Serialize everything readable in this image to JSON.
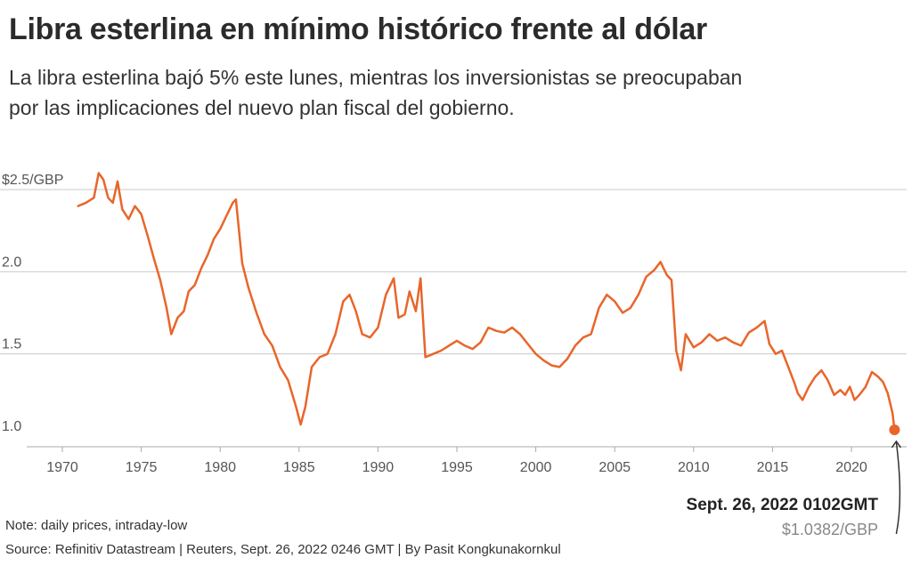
{
  "header": {
    "title": "Libra esterlina en mínimo histórico frente al dólar",
    "subtitle_line1": "La libra esterlina bajó 5% este lunes, mientras los inversionistas se preocupaban",
    "subtitle_line2": "por las implicaciones del nuevo plan fiscal del gobierno."
  },
  "footer": {
    "note": "Note: daily prices, intraday-low",
    "source": "Source: Refinitiv Datastream | Reuters, Sept. 26, 2022 0246 GMT | By Pasit Kongkunakornkul"
  },
  "annotation": {
    "date": "Sept. 26, 2022 0102GMT",
    "value": "$1.0382/GBP"
  },
  "colors": {
    "line": "#e8662a",
    "grid": "#c8c8c8",
    "axis_text": "#555555"
  },
  "chart_data": {
    "type": "line",
    "title": "Libra esterlina en mínimo histórico frente al dólar",
    "xlabel": "",
    "ylabel": "",
    "xlim": [
      1970,
      2022.8
    ],
    "ylim": [
      1.0,
      2.5
    ],
    "x_ticks": [
      1970,
      1975,
      1980,
      1985,
      1990,
      1995,
      2000,
      2005,
      2010,
      2015,
      2020
    ],
    "x_tick_labels": [
      "1970",
      "1975",
      "1980",
      "1985",
      "1990",
      "1995",
      "2000",
      "2005",
      "2010",
      "2015",
      "2020"
    ],
    "y_ticks": [
      1.0,
      1.5,
      2.0,
      2.5
    ],
    "y_tick_labels": [
      "1.0",
      "1.5",
      "2.0",
      "$2.5/GBP"
    ],
    "grid": true,
    "series": [
      {
        "x": [
          1971.0,
          1971.5,
          1972.0,
          1972.3,
          1972.6,
          1972.9,
          1973.2,
          1973.5,
          1973.8,
          1974.2,
          1974.6,
          1975.0,
          1975.4,
          1975.8,
          1976.2,
          1976.6,
          1976.9,
          1977.3,
          1977.7,
          1978.0,
          1978.4,
          1978.8,
          1979.2,
          1979.6,
          1980.0,
          1980.4,
          1980.8,
          1981.0,
          1981.4,
          1981.8,
          1982.3,
          1982.8,
          1983.3,
          1983.8,
          1984.3,
          1984.8,
          1985.1,
          1985.4,
          1985.8,
          1986.3,
          1986.8,
          1987.3,
          1987.8,
          1988.2,
          1988.6,
          1989.0,
          1989.5,
          1990.0,
          1990.5,
          1991.0,
          1991.3,
          1991.7,
          1992.0,
          1992.4,
          1992.7,
          1993.0,
          1993.5,
          1994.0,
          1994.5,
          1995.0,
          1995.5,
          1996.0,
          1996.5,
          1997.0,
          1997.5,
          1998.0,
          1998.5,
          1999.0,
          1999.5,
          2000.0,
          2000.5,
          2001.0,
          2001.5,
          2002.0,
          2002.5,
          2003.0,
          2003.5,
          2004.0,
          2004.5,
          2005.0,
          2005.5,
          2006.0,
          2006.5,
          2007.0,
          2007.5,
          2007.9,
          2008.3,
          2008.6,
          2008.9,
          2009.2,
          2009.5,
          2010.0,
          2010.5,
          2011.0,
          2011.5,
          2012.0,
          2012.5,
          2013.0,
          2013.5,
          2014.0,
          2014.5,
          2014.8,
          2015.2,
          2015.6,
          2016.0,
          2016.4,
          2016.6,
          2016.9,
          2017.3,
          2017.7,
          2018.1,
          2018.5,
          2018.9,
          2019.3,
          2019.6,
          2019.9,
          2020.2,
          2020.5,
          2020.9,
          2021.3,
          2021.7,
          2022.0,
          2022.3,
          2022.6,
          2022.73
        ],
        "y": [
          2.4,
          2.42,
          2.45,
          2.6,
          2.56,
          2.45,
          2.42,
          2.55,
          2.38,
          2.32,
          2.4,
          2.35,
          2.22,
          2.08,
          1.95,
          1.78,
          1.62,
          1.72,
          1.76,
          1.88,
          1.92,
          2.02,
          2.1,
          2.2,
          2.26,
          2.34,
          2.42,
          2.44,
          2.05,
          1.9,
          1.75,
          1.62,
          1.55,
          1.42,
          1.34,
          1.18,
          1.07,
          1.18,
          1.42,
          1.48,
          1.5,
          1.62,
          1.82,
          1.86,
          1.76,
          1.62,
          1.6,
          1.66,
          1.86,
          1.96,
          1.72,
          1.74,
          1.88,
          1.76,
          1.96,
          1.48,
          1.5,
          1.52,
          1.55,
          1.58,
          1.55,
          1.53,
          1.57,
          1.66,
          1.64,
          1.63,
          1.66,
          1.62,
          1.56,
          1.5,
          1.46,
          1.43,
          1.42,
          1.47,
          1.55,
          1.6,
          1.62,
          1.78,
          1.86,
          1.82,
          1.75,
          1.78,
          1.86,
          1.97,
          2.01,
          2.06,
          1.98,
          1.95,
          1.52,
          1.4,
          1.62,
          1.54,
          1.57,
          1.62,
          1.58,
          1.6,
          1.57,
          1.55,
          1.63,
          1.66,
          1.7,
          1.56,
          1.5,
          1.52,
          1.42,
          1.32,
          1.26,
          1.22,
          1.3,
          1.36,
          1.4,
          1.34,
          1.25,
          1.28,
          1.25,
          1.3,
          1.22,
          1.25,
          1.3,
          1.39,
          1.36,
          1.33,
          1.26,
          1.14,
          1.038
        ]
      }
    ],
    "annotations": [
      {
        "x": 2022.73,
        "y": 1.0382,
        "label": "Sept. 26, 2022 0102GMT",
        "value_label": "$1.0382/GBP"
      }
    ]
  }
}
